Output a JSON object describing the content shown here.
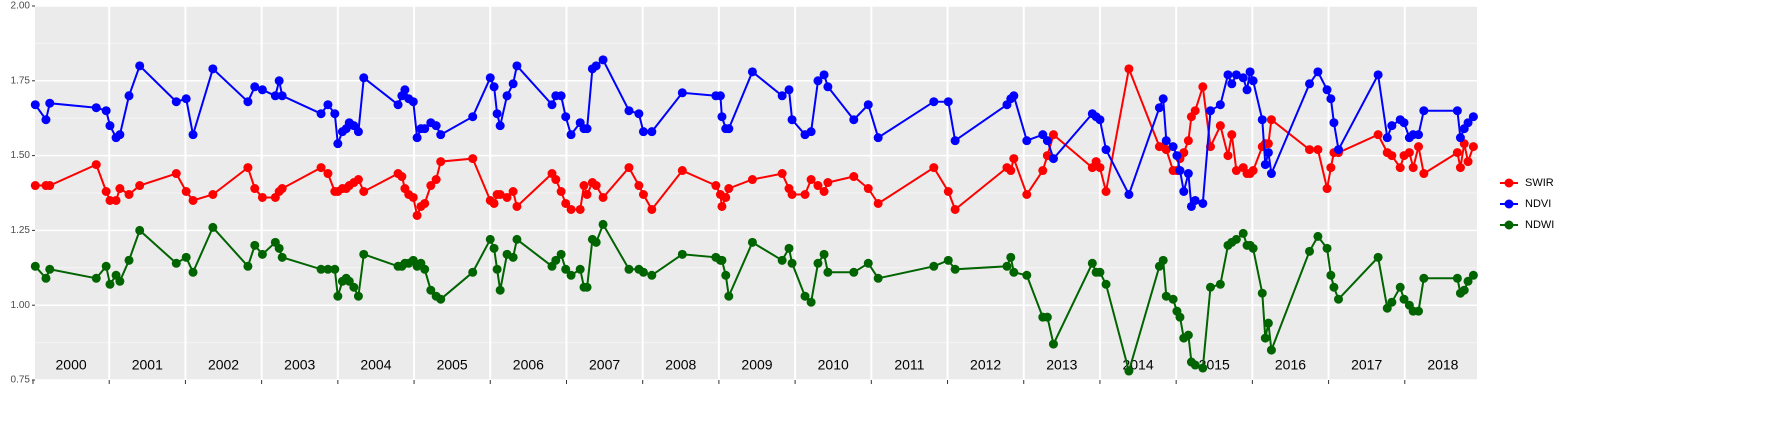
{
  "chart_data": {
    "type": "line",
    "x": [
      2000.03,
      2000.17,
      2000.22,
      2000.83,
      2000.96,
      2001.01,
      2001.09,
      2001.14,
      2001.26,
      2001.4,
      2001.88,
      2002.01,
      2002.1,
      2002.36,
      2002.82,
      2002.91,
      2003.01,
      2003.18,
      2003.23,
      2003.27,
      2003.78,
      2003.87,
      2003.96,
      2004.0,
      2004.06,
      2004.11,
      2004.15,
      2004.21,
      2004.27,
      2004.34,
      2004.79,
      2004.84,
      2004.88,
      2004.93,
      2004.99,
      2005.04,
      2005.09,
      2005.14,
      2005.22,
      2005.29,
      2005.35,
      2005.77,
      2006.0,
      2006.05,
      2006.09,
      2006.13,
      2006.22,
      2006.3,
      2006.35,
      2006.81,
      2006.86,
      2006.93,
      2006.99,
      2007.06,
      2007.18,
      2007.23,
      2007.27,
      2007.34,
      2007.39,
      2007.48,
      2007.82,
      2007.95,
      2008.01,
      2008.12,
      2008.52,
      2008.96,
      2009.02,
      2009.04,
      2009.09,
      2009.13,
      2009.44,
      2009.83,
      2009.92,
      2009.96,
      2010.13,
      2010.21,
      2010.3,
      2010.38,
      2010.43,
      2010.77,
      2010.96,
      2011.09,
      2011.82,
      2012.01,
      2012.1,
      2012.78,
      2012.83,
      2012.87,
      2013.04,
      2013.25,
      2013.31,
      2013.39,
      2013.9,
      2013.95,
      2014.0,
      2014.08,
      2014.38,
      2014.78,
      2014.83,
      2014.87,
      2014.96,
      2015.01,
      2015.05,
      2015.1,
      2015.16,
      2015.2,
      2015.25,
      2015.35,
      2015.45,
      2015.58,
      2015.68,
      2015.73,
      2015.79,
      2015.88,
      2015.93,
      2015.97,
      2016.01,
      2016.13,
      2016.17,
      2016.21,
      2016.25,
      2016.75,
      2016.86,
      2016.98,
      2017.03,
      2017.07,
      2017.13,
      2017.65,
      2017.77,
      2017.83,
      2017.94,
      2017.99,
      2018.06,
      2018.11,
      2018.18,
      2018.25,
      2018.69,
      2018.73,
      2018.78,
      2018.83,
      2018.9
    ],
    "series": [
      {
        "name": "SWIR",
        "color": "#ff0000",
        "values": [
          1.4,
          1.4,
          1.4,
          1.47,
          1.38,
          1.35,
          1.35,
          1.39,
          1.37,
          1.4,
          1.44,
          1.38,
          1.35,
          1.37,
          1.46,
          1.39,
          1.36,
          1.36,
          1.38,
          1.39,
          1.46,
          1.44,
          1.38,
          1.38,
          1.39,
          1.39,
          1.4,
          1.41,
          1.42,
          1.38,
          1.44,
          1.43,
          1.39,
          1.37,
          1.36,
          1.3,
          1.33,
          1.34,
          1.4,
          1.42,
          1.48,
          1.49,
          1.35,
          1.34,
          1.37,
          1.37,
          1.36,
          1.38,
          1.33,
          1.44,
          1.42,
          1.38,
          1.34,
          1.32,
          1.32,
          1.4,
          1.37,
          1.41,
          1.4,
          1.36,
          1.46,
          1.4,
          1.37,
          1.32,
          1.45,
          1.4,
          1.37,
          1.33,
          1.36,
          1.39,
          1.42,
          1.44,
          1.39,
          1.37,
          1.37,
          1.42,
          1.4,
          1.38,
          1.41,
          1.43,
          1.39,
          1.34,
          1.46,
          1.38,
          1.32,
          1.46,
          1.45,
          1.49,
          1.37,
          1.45,
          1.5,
          1.57,
          1.46,
          1.48,
          1.46,
          1.38,
          1.79,
          1.53,
          1.53,
          1.52,
          1.45,
          1.45,
          1.49,
          1.51,
          1.55,
          1.63,
          1.65,
          1.73,
          1.53,
          1.6,
          1.5,
          1.57,
          1.45,
          1.46,
          1.44,
          1.44,
          1.45,
          1.53,
          1.54,
          1.54,
          1.62,
          1.52,
          1.52,
          1.39,
          1.46,
          1.51,
          1.51,
          1.57,
          1.51,
          1.5,
          1.46,
          1.5,
          1.51,
          1.46,
          1.53,
          1.44,
          1.51,
          1.46,
          1.54,
          1.48,
          1.53
        ]
      },
      {
        "name": "NDVI",
        "color": "#0000ff",
        "values": [
          1.67,
          1.62,
          1.675,
          1.66,
          1.65,
          1.6,
          1.56,
          1.57,
          1.7,
          1.8,
          1.68,
          1.69,
          1.57,
          1.79,
          1.68,
          1.73,
          1.72,
          1.7,
          1.75,
          1.7,
          1.64,
          1.67,
          1.64,
          1.54,
          1.58,
          1.59,
          1.61,
          1.6,
          1.58,
          1.76,
          1.67,
          1.7,
          1.72,
          1.69,
          1.68,
          1.56,
          1.59,
          1.59,
          1.61,
          1.6,
          1.57,
          1.63,
          1.76,
          1.73,
          1.64,
          1.6,
          1.7,
          1.74,
          1.8,
          1.67,
          1.7,
          1.7,
          1.63,
          1.57,
          1.61,
          1.59,
          1.59,
          1.79,
          1.8,
          1.82,
          1.65,
          1.64,
          1.58,
          1.58,
          1.71,
          1.7,
          1.7,
          1.63,
          1.59,
          1.59,
          1.78,
          1.7,
          1.72,
          1.62,
          1.57,
          1.58,
          1.75,
          1.77,
          1.73,
          1.62,
          1.67,
          1.56,
          1.68,
          1.68,
          1.55,
          1.67,
          1.69,
          1.7,
          1.55,
          1.57,
          1.55,
          1.49,
          1.64,
          1.63,
          1.62,
          1.52,
          1.37,
          1.66,
          1.69,
          1.55,
          1.53,
          1.5,
          1.45,
          1.38,
          1.44,
          1.33,
          1.35,
          1.34,
          1.65,
          1.67,
          1.77,
          1.74,
          1.77,
          1.76,
          1.72,
          1.78,
          1.75,
          1.62,
          1.47,
          1.51,
          1.44,
          1.74,
          1.78,
          1.72,
          1.69,
          1.61,
          1.52,
          1.77,
          1.56,
          1.6,
          1.62,
          1.61,
          1.56,
          1.57,
          1.57,
          1.65,
          1.65,
          1.56,
          1.59,
          1.61,
          1.63
        ]
      },
      {
        "name": "NDWI",
        "color": "#006400",
        "values": [
          1.13,
          1.09,
          1.12,
          1.09,
          1.13,
          1.07,
          1.1,
          1.08,
          1.15,
          1.25,
          1.14,
          1.16,
          1.11,
          1.26,
          1.13,
          1.2,
          1.17,
          1.21,
          1.19,
          1.16,
          1.12,
          1.12,
          1.12,
          1.03,
          1.08,
          1.09,
          1.08,
          1.06,
          1.03,
          1.17,
          1.13,
          1.13,
          1.14,
          1.14,
          1.15,
          1.13,
          1.14,
          1.12,
          1.05,
          1.03,
          1.02,
          1.11,
          1.22,
          1.19,
          1.12,
          1.05,
          1.17,
          1.16,
          1.22,
          1.13,
          1.15,
          1.17,
          1.12,
          1.1,
          1.12,
          1.06,
          1.06,
          1.22,
          1.21,
          1.27,
          1.12,
          1.12,
          1.11,
          1.1,
          1.17,
          1.16,
          1.15,
          1.15,
          1.1,
          1.03,
          1.21,
          1.15,
          1.19,
          1.14,
          1.03,
          1.01,
          1.14,
          1.17,
          1.11,
          1.11,
          1.14,
          1.09,
          1.13,
          1.15,
          1.12,
          1.13,
          1.16,
          1.11,
          1.1,
          0.96,
          0.96,
          0.87,
          1.14,
          1.11,
          1.11,
          1.07,
          0.78,
          1.13,
          1.15,
          1.03,
          1.02,
          0.98,
          0.96,
          0.89,
          0.9,
          0.81,
          0.8,
          0.79,
          1.06,
          1.07,
          1.2,
          1.21,
          1.22,
          1.24,
          1.2,
          1.2,
          1.19,
          1.04,
          0.89,
          0.94,
          0.85,
          1.18,
          1.23,
          1.19,
          1.1,
          1.06,
          1.02,
          1.16,
          0.99,
          1.01,
          1.06,
          1.02,
          1.0,
          0.98,
          0.98,
          1.09,
          1.09,
          1.04,
          1.05,
          1.08,
          1.1
        ]
      }
    ],
    "xlim": [
      2000,
      2019
    ],
    "xbreaks": [
      2000,
      2001,
      2002,
      2003,
      2004,
      2005,
      2006,
      2007,
      2008,
      2009,
      2010,
      2011,
      2012,
      2013,
      2014,
      2015,
      2016,
      2017,
      2018
    ],
    "xticks": [
      {
        "value": 2000.5,
        "label": "2000"
      },
      {
        "value": 2001.5,
        "label": "2001"
      },
      {
        "value": 2002.5,
        "label": "2002"
      },
      {
        "value": 2003.5,
        "label": "2003"
      },
      {
        "value": 2004.5,
        "label": "2004"
      },
      {
        "value": 2005.5,
        "label": "2005"
      },
      {
        "value": 2006.5,
        "label": "2006"
      },
      {
        "value": 2007.5,
        "label": "2007"
      },
      {
        "value": 2008.5,
        "label": "2008"
      },
      {
        "value": 2009.5,
        "label": "2009"
      },
      {
        "value": 2010.5,
        "label": "2010"
      },
      {
        "value": 2011.5,
        "label": "2011"
      },
      {
        "value": 2012.5,
        "label": "2012"
      },
      {
        "value": 2013.5,
        "label": "2013"
      },
      {
        "value": 2014.5,
        "label": "2014"
      },
      {
        "value": 2015.5,
        "label": "2015"
      },
      {
        "value": 2016.5,
        "label": "2016"
      },
      {
        "value": 2017.5,
        "label": "2017"
      },
      {
        "value": 2018.5,
        "label": "2018"
      }
    ],
    "ylim": [
      0.75,
      2.0
    ],
    "yticks": [
      0.75,
      {
        "value": 1.0,
        "label": "1.00"
      },
      1.25,
      {
        "value": 1.5,
        "label": "1.50"
      },
      1.75,
      {
        "value": 2.0,
        "label": "2.00"
      }
    ],
    "grid": true,
    "legend": "right"
  }
}
